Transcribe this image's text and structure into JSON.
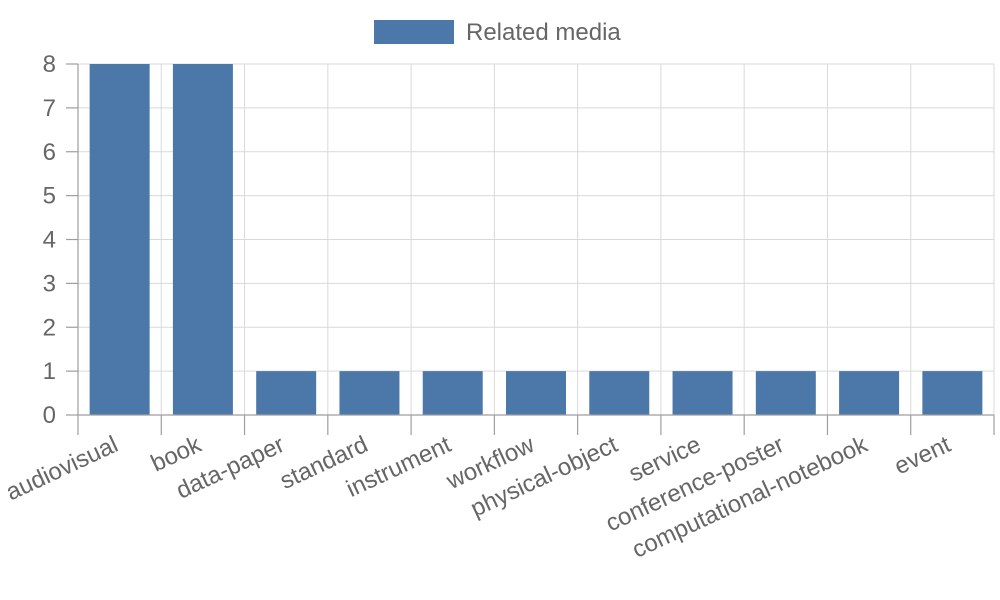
{
  "colors": {
    "bar": "#4b78a8",
    "grid": "#d9d9d9",
    "axis": "#9e9e9e",
    "text": "#666666"
  },
  "chart_data": {
    "type": "bar",
    "categories": [
      "audiovisual",
      "book",
      "data-paper",
      "standard",
      "instrument",
      "workflow",
      "physical-object",
      "service",
      "conference-poster",
      "computational-notebook",
      "event"
    ],
    "series": [
      {
        "name": "Related media",
        "values": [
          8,
          8,
          1,
          1,
          1,
          1,
          1,
          1,
          1,
          1,
          1
        ]
      }
    ],
    "xlabel": "",
    "ylabel": "",
    "ylim": [
      0,
      8
    ],
    "yticks": [
      0,
      1,
      2,
      3,
      4,
      5,
      6,
      7,
      8
    ],
    "grid": true,
    "legend": "top-center"
  }
}
